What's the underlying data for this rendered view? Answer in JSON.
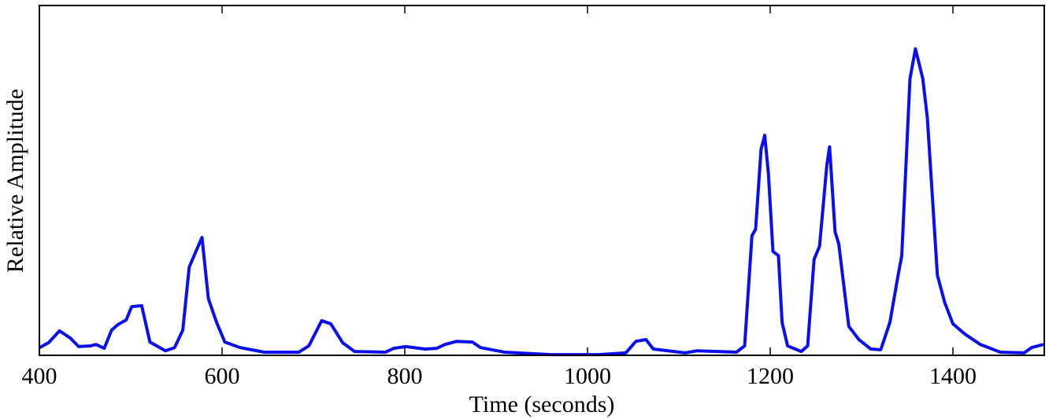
{
  "chart_data": {
    "type": "line",
    "xlabel": "Time (seconds)",
    "ylabel": "Relative Amplitude",
    "xlim": [
      400,
      1500
    ],
    "ylim": [
      0,
      1
    ],
    "xticks": [
      400,
      600,
      800,
      1000,
      1200,
      1400
    ],
    "series": [
      {
        "color": "#0a0ff0",
        "x": [
          400,
          410,
          422,
          434,
          443,
          456,
          462,
          471,
          479,
          486,
          495,
          501,
          512,
          521,
          538,
          548,
          557,
          564,
          572,
          578,
          585,
          594,
          603,
          620,
          646,
          684,
          695,
          709,
          719,
          732,
          745,
          779,
          788,
          801,
          822,
          835,
          844,
          857,
          874,
          883,
          909,
          960,
          1012,
          1042,
          1053,
          1064,
          1072,
          1107,
          1120,
          1163,
          1172,
          1180,
          1184,
          1190,
          1194,
          1198,
          1203,
          1209,
          1213,
          1219,
          1234,
          1241,
          1248,
          1254,
          1262,
          1265,
          1271,
          1275,
          1286,
          1297,
          1310,
          1321,
          1331,
          1340,
          1344,
          1353,
          1359,
          1367,
          1372,
          1383,
          1391,
          1400,
          1413,
          1430,
          1452,
          1478,
          1486,
          1499
        ],
        "values": [
          0.022,
          0.036,
          0.07,
          0.049,
          0.025,
          0.027,
          0.031,
          0.02,
          0.072,
          0.088,
          0.101,
          0.139,
          0.142,
          0.038,
          0.013,
          0.022,
          0.072,
          0.252,
          0.301,
          0.337,
          0.162,
          0.094,
          0.038,
          0.022,
          0.009,
          0.009,
          0.027,
          0.099,
          0.09,
          0.036,
          0.011,
          0.009,
          0.02,
          0.025,
          0.018,
          0.02,
          0.031,
          0.04,
          0.038,
          0.022,
          0.009,
          0.002,
          0.002,
          0.007,
          0.04,
          0.045,
          0.018,
          0.007,
          0.013,
          0.009,
          0.027,
          0.342,
          0.36,
          0.589,
          0.629,
          0.521,
          0.297,
          0.285,
          0.094,
          0.027,
          0.011,
          0.027,
          0.274,
          0.312,
          0.544,
          0.596,
          0.353,
          0.319,
          0.083,
          0.045,
          0.018,
          0.016,
          0.094,
          0.229,
          0.285,
          0.791,
          0.876,
          0.791,
          0.679,
          0.229,
          0.151,
          0.09,
          0.061,
          0.031,
          0.009,
          0.007,
          0.022,
          0.031
        ]
      }
    ]
  }
}
